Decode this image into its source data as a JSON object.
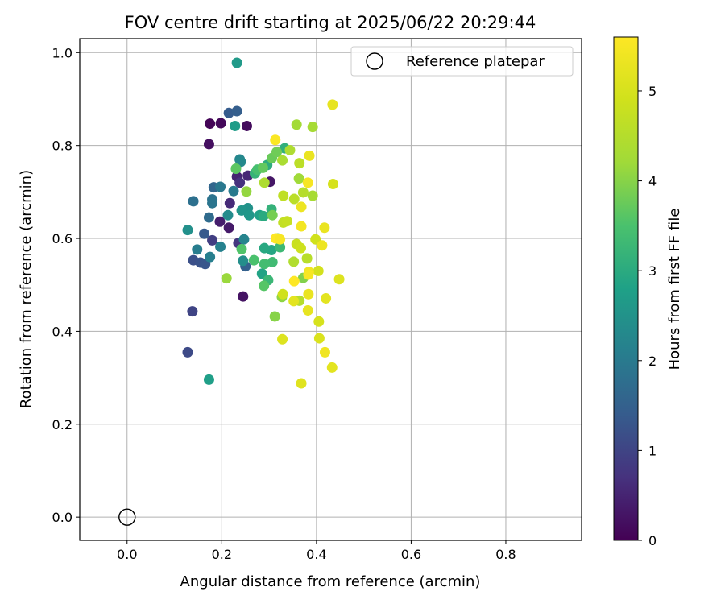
{
  "chart_data": {
    "type": "scatter",
    "title": "FOV centre drift starting at 2025/06/22 20:29:44",
    "xlabel": "Angular distance from reference (arcmin)",
    "ylabel": "Rotation from reference (arcmin)",
    "xlim": [
      -0.1,
      0.96
    ],
    "ylim": [
      -0.05,
      1.03
    ],
    "x_ticks": [
      "0.0",
      "0.2",
      "0.4",
      "0.6",
      "0.8"
    ],
    "y_ticks": [
      "0.0",
      "0.2",
      "0.4",
      "0.6",
      "0.8",
      "1.0"
    ],
    "grid": true,
    "legend": {
      "position": "top-right",
      "label": "Reference platepar"
    },
    "reference_point": {
      "x": 0.0,
      "y": 0.0
    },
    "colorbar": {
      "label": "Hours from first FF file",
      "colormap": "viridis",
      "range": [
        0,
        5.6
      ],
      "ticks": [
        "0",
        "1",
        "2",
        "3",
        "4",
        "5"
      ]
    },
    "points": [
      {
        "x": 0.175,
        "y": 0.847,
        "h": 0.05
      },
      {
        "x": 0.198,
        "y": 0.848,
        "h": 0.1
      },
      {
        "x": 0.253,
        "y": 0.842,
        "h": 0.15
      },
      {
        "x": 0.173,
        "y": 0.803,
        "h": 0.2
      },
      {
        "x": 0.245,
        "y": 0.475,
        "h": 0.25
      },
      {
        "x": 0.302,
        "y": 0.722,
        "h": 0.3
      },
      {
        "x": 0.215,
        "y": 0.623,
        "h": 0.35
      },
      {
        "x": 0.196,
        "y": 0.636,
        "h": 0.4
      },
      {
        "x": 0.232,
        "y": 0.733,
        "h": 0.5
      },
      {
        "x": 0.255,
        "y": 0.735,
        "h": 0.55
      },
      {
        "x": 0.217,
        "y": 0.676,
        "h": 0.6
      },
      {
        "x": 0.238,
        "y": 0.72,
        "h": 0.7
      },
      {
        "x": 0.235,
        "y": 0.59,
        "h": 0.8
      },
      {
        "x": 0.18,
        "y": 0.596,
        "h": 0.9
      },
      {
        "x": 0.138,
        "y": 0.443,
        "h": 1.0
      },
      {
        "x": 0.128,
        "y": 0.355,
        "h": 1.1
      },
      {
        "x": 0.14,
        "y": 0.553,
        "h": 1.2
      },
      {
        "x": 0.155,
        "y": 0.548,
        "h": 1.25
      },
      {
        "x": 0.165,
        "y": 0.545,
        "h": 1.3
      },
      {
        "x": 0.163,
        "y": 0.61,
        "h": 1.35
      },
      {
        "x": 0.215,
        "y": 0.87,
        "h": 1.4
      },
      {
        "x": 0.232,
        "y": 0.874,
        "h": 1.45
      },
      {
        "x": 0.25,
        "y": 0.54,
        "h": 1.5
      },
      {
        "x": 0.183,
        "y": 0.71,
        "h": 1.6
      },
      {
        "x": 0.173,
        "y": 0.645,
        "h": 1.7
      },
      {
        "x": 0.14,
        "y": 0.68,
        "h": 1.8
      },
      {
        "x": 0.18,
        "y": 0.684,
        "h": 1.85
      },
      {
        "x": 0.18,
        "y": 0.676,
        "h": 1.9
      },
      {
        "x": 0.197,
        "y": 0.711,
        "h": 1.95
      },
      {
        "x": 0.225,
        "y": 0.702,
        "h": 2.0
      },
      {
        "x": 0.148,
        "y": 0.576,
        "h": 2.05
      },
      {
        "x": 0.175,
        "y": 0.56,
        "h": 2.1
      },
      {
        "x": 0.197,
        "y": 0.582,
        "h": 2.15
      },
      {
        "x": 0.247,
        "y": 0.598,
        "h": 2.2
      },
      {
        "x": 0.238,
        "y": 0.77,
        "h": 2.25
      },
      {
        "x": 0.24,
        "y": 0.765,
        "h": 2.3
      },
      {
        "x": 0.213,
        "y": 0.65,
        "h": 2.35
      },
      {
        "x": 0.245,
        "y": 0.552,
        "h": 2.4
      },
      {
        "x": 0.128,
        "y": 0.618,
        "h": 2.45
      },
      {
        "x": 0.255,
        "y": 0.665,
        "h": 2.5
      },
      {
        "x": 0.242,
        "y": 0.66,
        "h": 2.55
      },
      {
        "x": 0.258,
        "y": 0.65,
        "h": 2.6
      },
      {
        "x": 0.232,
        "y": 0.978,
        "h": 2.65
      },
      {
        "x": 0.228,
        "y": 0.842,
        "h": 2.7
      },
      {
        "x": 0.173,
        "y": 0.296,
        "h": 2.75
      },
      {
        "x": 0.28,
        "y": 0.65,
        "h": 2.8
      },
      {
        "x": 0.285,
        "y": 0.524,
        "h": 2.85
      },
      {
        "x": 0.305,
        "y": 0.575,
        "h": 2.9
      },
      {
        "x": 0.29,
        "y": 0.579,
        "h": 2.95
      },
      {
        "x": 0.288,
        "y": 0.648,
        "h": 3.0
      },
      {
        "x": 0.296,
        "y": 0.758,
        "h": 3.05
      },
      {
        "x": 0.333,
        "y": 0.794,
        "h": 3.1
      },
      {
        "x": 0.305,
        "y": 0.663,
        "h": 3.15
      },
      {
        "x": 0.27,
        "y": 0.74,
        "h": 3.2
      },
      {
        "x": 0.298,
        "y": 0.51,
        "h": 3.25
      },
      {
        "x": 0.323,
        "y": 0.581,
        "h": 3.3
      },
      {
        "x": 0.307,
        "y": 0.549,
        "h": 3.35
      },
      {
        "x": 0.29,
        "y": 0.545,
        "h": 3.4
      },
      {
        "x": 0.275,
        "y": 0.748,
        "h": 3.45
      },
      {
        "x": 0.268,
        "y": 0.553,
        "h": 3.5
      },
      {
        "x": 0.242,
        "y": 0.577,
        "h": 3.55
      },
      {
        "x": 0.289,
        "y": 0.498,
        "h": 3.6
      },
      {
        "x": 0.23,
        "y": 0.75,
        "h": 3.65
      },
      {
        "x": 0.287,
        "y": 0.752,
        "h": 3.7
      },
      {
        "x": 0.306,
        "y": 0.773,
        "h": 3.75
      },
      {
        "x": 0.316,
        "y": 0.786,
        "h": 3.8
      },
      {
        "x": 0.307,
        "y": 0.65,
        "h": 3.85
      },
      {
        "x": 0.318,
        "y": 0.6,
        "h": 3.9
      },
      {
        "x": 0.372,
        "y": 0.515,
        "h": 3.95
      },
      {
        "x": 0.312,
        "y": 0.432,
        "h": 4.0
      },
      {
        "x": 0.327,
        "y": 0.474,
        "h": 4.05
      },
      {
        "x": 0.252,
        "y": 0.701,
        "h": 4.1
      },
      {
        "x": 0.21,
        "y": 0.514,
        "h": 4.15
      },
      {
        "x": 0.363,
        "y": 0.729,
        "h": 4.2
      },
      {
        "x": 0.358,
        "y": 0.845,
        "h": 4.25
      },
      {
        "x": 0.392,
        "y": 0.84,
        "h": 4.3
      },
      {
        "x": 0.328,
        "y": 0.768,
        "h": 4.35
      },
      {
        "x": 0.29,
        "y": 0.72,
        "h": 4.4
      },
      {
        "x": 0.352,
        "y": 0.55,
        "h": 4.45
      },
      {
        "x": 0.364,
        "y": 0.466,
        "h": 4.5
      },
      {
        "x": 0.38,
        "y": 0.557,
        "h": 4.55
      },
      {
        "x": 0.353,
        "y": 0.685,
        "h": 4.6
      },
      {
        "x": 0.33,
        "y": 0.692,
        "h": 4.65
      },
      {
        "x": 0.33,
        "y": 0.634,
        "h": 4.7
      },
      {
        "x": 0.338,
        "y": 0.637,
        "h": 4.75
      },
      {
        "x": 0.358,
        "y": 0.588,
        "h": 4.8
      },
      {
        "x": 0.367,
        "y": 0.579,
        "h": 4.85
      },
      {
        "x": 0.398,
        "y": 0.598,
        "h": 4.9
      },
      {
        "x": 0.404,
        "y": 0.53,
        "h": 4.95
      },
      {
        "x": 0.405,
        "y": 0.421,
        "h": 5.0
      },
      {
        "x": 0.406,
        "y": 0.385,
        "h": 5.05
      },
      {
        "x": 0.328,
        "y": 0.383,
        "h": 5.1
      },
      {
        "x": 0.368,
        "y": 0.288,
        "h": 5.15
      },
      {
        "x": 0.352,
        "y": 0.465,
        "h": 5.2
      },
      {
        "x": 0.382,
        "y": 0.445,
        "h": 5.25
      },
      {
        "x": 0.383,
        "y": 0.48,
        "h": 5.3
      },
      {
        "x": 0.344,
        "y": 0.79,
        "h": 4.4
      },
      {
        "x": 0.364,
        "y": 0.762,
        "h": 4.6
      },
      {
        "x": 0.392,
        "y": 0.692,
        "h": 4.3
      },
      {
        "x": 0.372,
        "y": 0.699,
        "h": 4.5
      },
      {
        "x": 0.417,
        "y": 0.623,
        "h": 5.3
      },
      {
        "x": 0.412,
        "y": 0.585,
        "h": 5.35
      },
      {
        "x": 0.42,
        "y": 0.471,
        "h": 5.2
      },
      {
        "x": 0.448,
        "y": 0.512,
        "h": 5.1
      },
      {
        "x": 0.434,
        "y": 0.888,
        "h": 5.25
      },
      {
        "x": 0.435,
        "y": 0.717,
        "h": 5.0
      },
      {
        "x": 0.433,
        "y": 0.322,
        "h": 5.2
      },
      {
        "x": 0.418,
        "y": 0.355,
        "h": 5.4
      },
      {
        "x": 0.385,
        "y": 0.778,
        "h": 5.3
      },
      {
        "x": 0.368,
        "y": 0.668,
        "h": 5.35
      },
      {
        "x": 0.368,
        "y": 0.626,
        "h": 5.45
      },
      {
        "x": 0.329,
        "y": 0.48,
        "h": 4.9
      },
      {
        "x": 0.384,
        "y": 0.528,
        "h": 5.4
      },
      {
        "x": 0.382,
        "y": 0.72,
        "h": 5.5
      },
      {
        "x": 0.313,
        "y": 0.812,
        "h": 5.55
      },
      {
        "x": 0.314,
        "y": 0.6,
        "h": 5.6
      },
      {
        "x": 0.323,
        "y": 0.598,
        "h": 5.5
      },
      {
        "x": 0.353,
        "y": 0.508,
        "h": 5.6
      },
      {
        "x": 0.383,
        "y": 0.522,
        "h": 5.5
      }
    ]
  }
}
